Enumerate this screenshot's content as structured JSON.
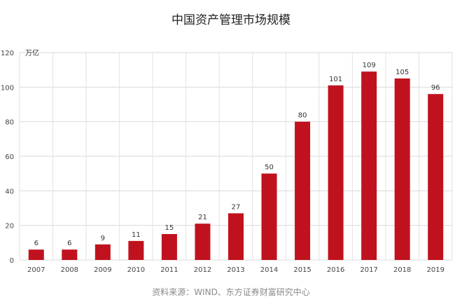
{
  "chart_data": {
    "type": "bar",
    "title": "中国资产管理市场规模",
    "unit": "万亿",
    "categories": [
      "2007",
      "2008",
      "2009",
      "2010",
      "2011",
      "2012",
      "2013",
      "2014",
      "2015",
      "2016",
      "2017",
      "2018",
      "2019"
    ],
    "values": [
      6,
      6,
      9,
      11,
      15,
      21,
      27,
      50,
      80,
      101,
      109,
      105,
      96
    ],
    "data_labels": [
      "6",
      "6",
      "9",
      "11",
      "15",
      "21",
      "27",
      "50",
      "80",
      "101",
      "109",
      "105",
      "96"
    ],
    "y_ticks": [
      0,
      20,
      40,
      60,
      80,
      100,
      120
    ],
    "ylim": [
      0,
      120
    ],
    "grid": true,
    "bar_color": "#c0121e",
    "source": "资料来源：WIND、东方证券财富研究中心"
  }
}
